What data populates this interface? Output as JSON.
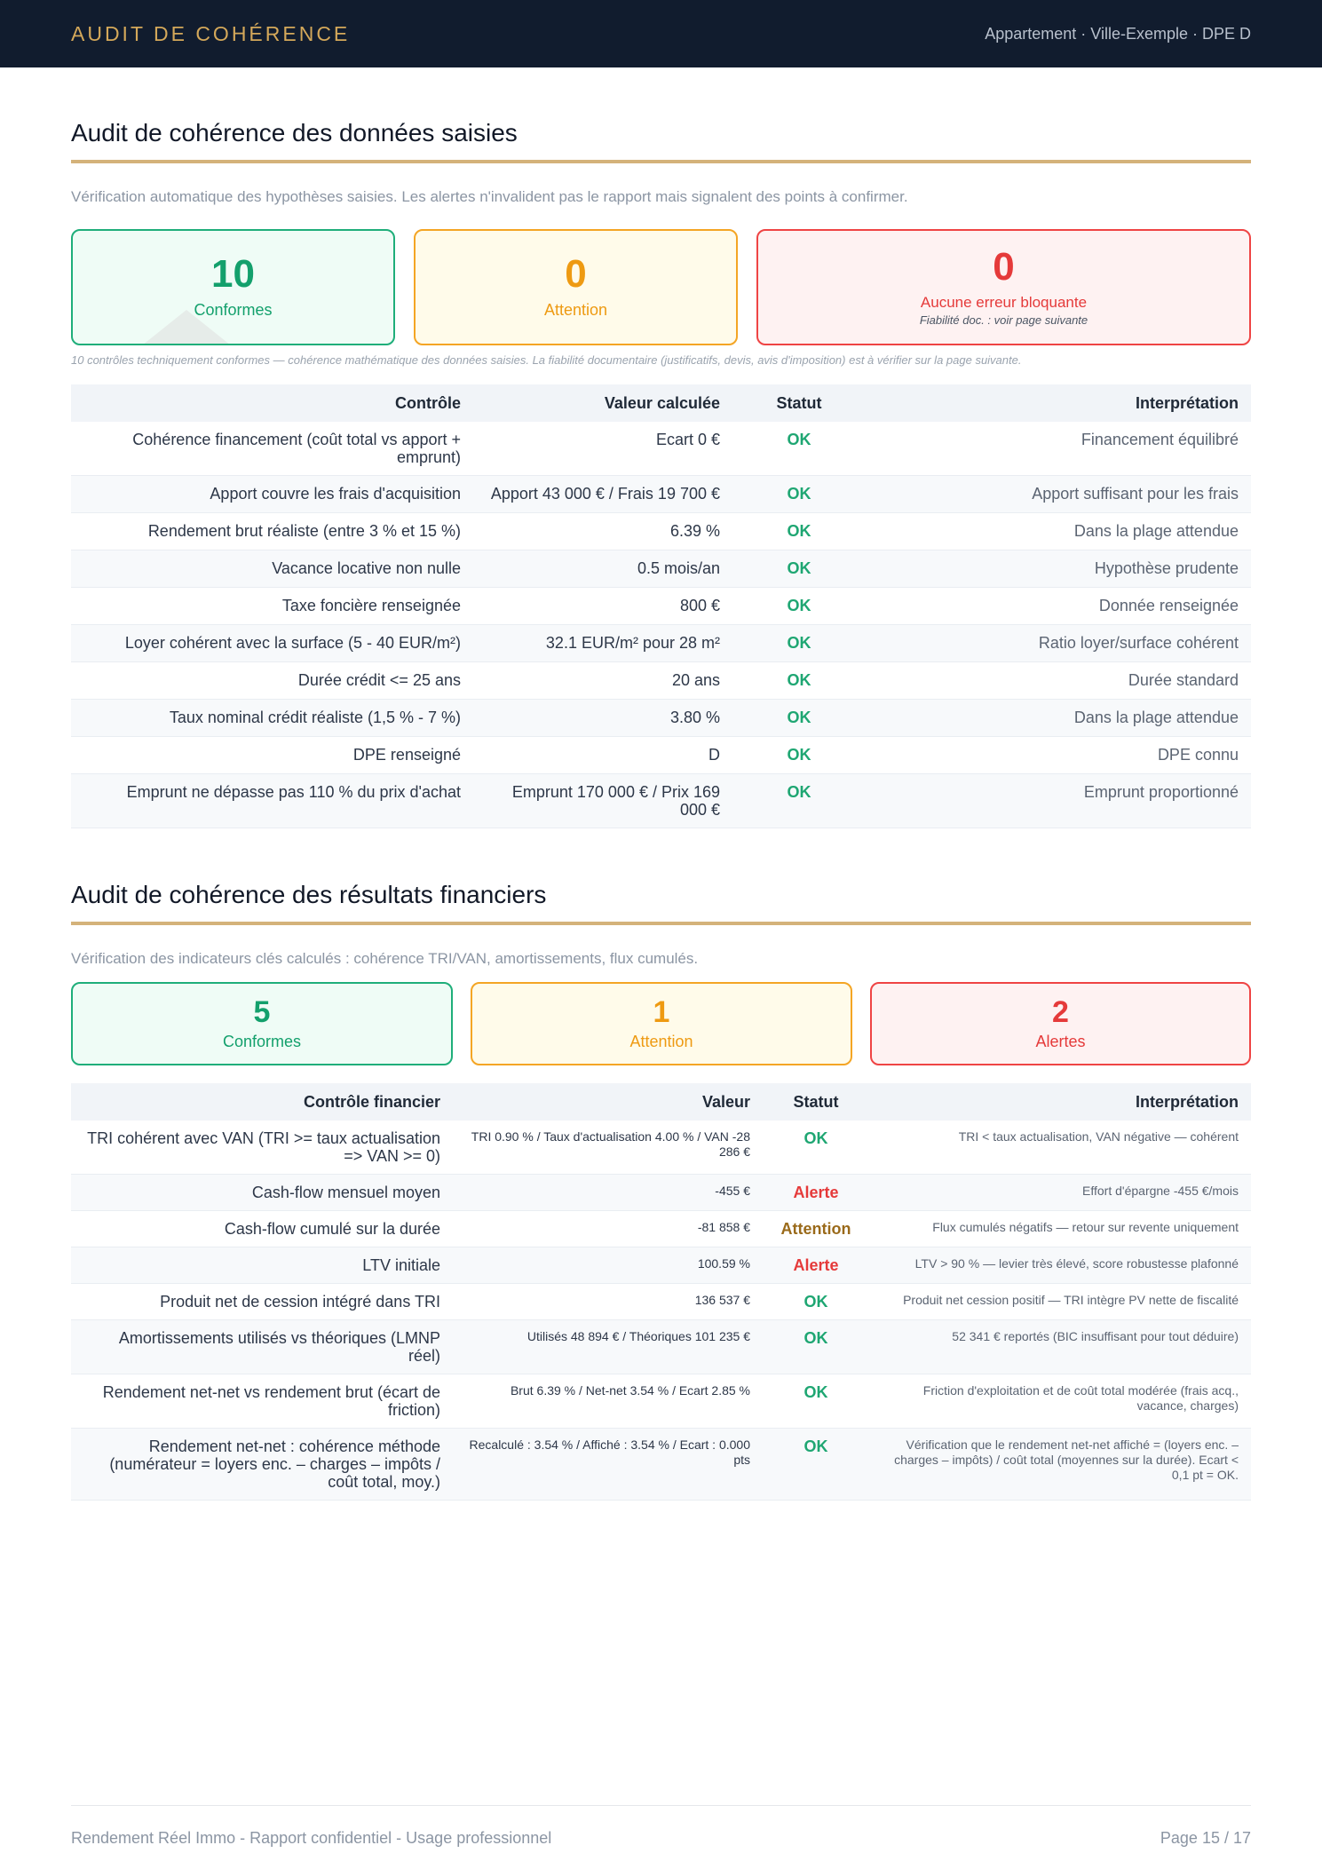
{
  "header": {
    "brand": "AUDIT DE COHÉRENCE",
    "meta": "Appartement · Ville-Exemple · DPE D"
  },
  "section1": {
    "title": "Audit de cohérence des données saisies",
    "intro": "Vérification automatique des hypothèses saisies. Les alertes n'invalident pas le rapport mais signalent des points à confirmer.",
    "cards": {
      "ok": {
        "value": "10",
        "label": "Conformes"
      },
      "attention": {
        "value": "0",
        "label": "Attention"
      },
      "error": {
        "value": "0",
        "label": "Aucune erreur bloquante",
        "sub": "Fiabilité doc. : voir page suivante"
      }
    },
    "note": "10 contrôles techniquement conformes — cohérence mathématique des données saisies. La fiabilité documentaire (justificatifs, devis, avis d'imposition) est à vérifier sur la page suivante.",
    "columns": [
      "Contrôle",
      "Valeur calculée",
      "Statut",
      "Interprétation"
    ],
    "rows": [
      {
        "control": "Cohérence financement (coût total vs apport + emprunt)",
        "value": "Ecart 0 €",
        "status": "OK",
        "interp": "Financement équilibré"
      },
      {
        "control": "Apport couvre les frais d'acquisition",
        "value": "Apport 43 000 € / Frais 19 700 €",
        "status": "OK",
        "interp": "Apport suffisant pour les frais"
      },
      {
        "control": "Rendement brut réaliste (entre 3 % et 15 %)",
        "value": "6.39 %",
        "status": "OK",
        "interp": "Dans la plage attendue"
      },
      {
        "control": "Vacance locative non nulle",
        "value": "0.5 mois/an",
        "status": "OK",
        "interp": "Hypothèse prudente"
      },
      {
        "control": "Taxe foncière renseignée",
        "value": "800 €",
        "status": "OK",
        "interp": "Donnée renseignée"
      },
      {
        "control": "Loyer cohérent avec la surface (5 - 40 EUR/m²)",
        "value": "32.1 EUR/m² pour 28 m²",
        "status": "OK",
        "interp": "Ratio loyer/surface cohérent"
      },
      {
        "control": "Durée crédit <= 25 ans",
        "value": "20 ans",
        "status": "OK",
        "interp": "Durée standard"
      },
      {
        "control": "Taux nominal crédit réaliste (1,5 % - 7 %)",
        "value": "3.80 %",
        "status": "OK",
        "interp": "Dans la plage attendue"
      },
      {
        "control": "DPE renseigné",
        "value": "D",
        "status": "OK",
        "interp": "DPE connu"
      },
      {
        "control": "Emprunt ne dépasse pas 110 % du prix d'achat",
        "value": "Emprunt 170 000 € / Prix 169 000 €",
        "status": "OK",
        "interp": "Emprunt proportionné"
      }
    ]
  },
  "section2": {
    "title": "Audit de cohérence des résultats financiers",
    "intro": "Vérification des indicateurs clés calculés : cohérence TRI/VAN, amortissements, flux cumulés.",
    "cards": {
      "ok": {
        "value": "5",
        "label": "Conformes"
      },
      "attention": {
        "value": "1",
        "label": "Attention"
      },
      "error": {
        "value": "2",
        "label": "Alertes"
      }
    },
    "columns": [
      "Contrôle financier",
      "Valeur",
      "Statut",
      "Interprétation"
    ],
    "rows": [
      {
        "control": "TRI cohérent avec VAN (TRI >= taux actualisation => VAN >= 0)",
        "value": "TRI 0.90 % / Taux d'actualisation 4.00 % / VAN -28 286 €",
        "status": "OK",
        "status_class": "ok",
        "interp": "TRI < taux actualisation, VAN négative — cohérent"
      },
      {
        "control": "Cash-flow mensuel moyen",
        "value": "-455 €",
        "status": "Alerte",
        "status_class": "alerte",
        "interp": "Effort d'épargne -455 €/mois"
      },
      {
        "control": "Cash-flow cumulé sur la durée",
        "value": "-81 858 €",
        "status": "Attention",
        "status_class": "attention",
        "interp": "Flux cumulés négatifs — retour sur revente uniquement"
      },
      {
        "control": "LTV initiale",
        "value": "100.59 %",
        "status": "Alerte",
        "status_class": "alerte",
        "interp": "LTV > 90 % — levier très élevé, score robustesse plafonné"
      },
      {
        "control": "Produit net de cession intégré dans TRI",
        "value": "136 537 €",
        "status": "OK",
        "status_class": "ok",
        "interp": "Produit net cession positif — TRI intègre PV nette de fiscalité"
      },
      {
        "control": "Amortissements utilisés vs théoriques (LMNP réel)",
        "value": "Utilisés 48 894 € / Théoriques 101 235 €",
        "status": "OK",
        "status_class": "ok",
        "interp": "52 341 € reportés (BIC insuffisant pour tout déduire)"
      },
      {
        "control": "Rendement net-net vs rendement brut (écart de friction)",
        "value": "Brut 6.39 % / Net-net 3.54 % / Ecart 2.85 %",
        "status": "OK",
        "status_class": "ok",
        "interp": "Friction d'exploitation et de coût total modérée (frais acq., vacance, charges)"
      },
      {
        "control": "Rendement net-net : cohérence méthode (numérateur = loyers enc. – charges – impôts / coût total, moy.)",
        "value": "Recalculé : 3.54 % / Affiché : 3.54 % / Ecart : 0.000 pts",
        "status": "OK",
        "status_class": "ok",
        "interp": "Vérification que le rendement net-net affiché = (loyers enc. – charges – impôts) / coût total (moyennes sur la durée). Ecart < 0,1 pt = OK."
      }
    ]
  },
  "footer": {
    "left": "Rendement Réel Immo - Rapport confidentiel - Usage professionnel",
    "right": "Page 15 / 17"
  }
}
